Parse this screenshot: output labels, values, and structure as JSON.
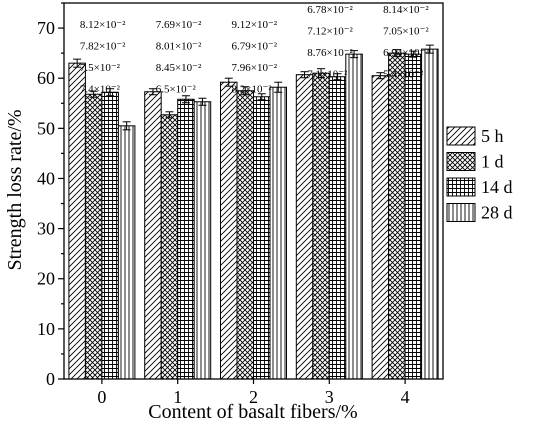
{
  "chart_data": {
    "type": "bar",
    "title": "",
    "xlabel": "Content of basalt fibers/%",
    "ylabel": "Strength loss rate/%",
    "ylim": [
      0,
      75
    ],
    "yticks": [
      0,
      10,
      20,
      30,
      40,
      50,
      60,
      70
    ],
    "categories": [
      "0",
      "1",
      "2",
      "3",
      "4"
    ],
    "legend_position": "right",
    "grid": false,
    "series": [
      {
        "name": "5 h",
        "pattern": "diagonal-hatch",
        "values": [
          63.0,
          57.3,
          59.2,
          60.7,
          60.5
        ],
        "errors": [
          0.8,
          0.6,
          0.8,
          0.6,
          0.6
        ]
      },
      {
        "name": "1 d",
        "pattern": "crosshatch-dense",
        "values": [
          56.8,
          52.7,
          57.5,
          61.0,
          65.0
        ],
        "errors": [
          0.6,
          0.6,
          0.8,
          0.9,
          0.7
        ]
      },
      {
        "name": "14 d",
        "pattern": "grid",
        "values": [
          57.2,
          55.8,
          56.3,
          60.3,
          64.8
        ],
        "errors": [
          0.7,
          0.7,
          0.6,
          0.6,
          0.6
        ]
      },
      {
        "name": "28 d",
        "pattern": "vertical-lines",
        "values": [
          50.5,
          55.3,
          58.2,
          64.8,
          65.8
        ],
        "errors": [
          0.8,
          0.7,
          1.0,
          0.7,
          0.8
        ]
      }
    ],
    "annotations": [
      [
        "8.12×10⁻²",
        "7.82×10⁻²",
        "7.5×10⁻²",
        "7.4×10⁻²"
      ],
      [
        "7.69×10⁻²",
        "8.01×10⁻²",
        "8.45×10⁻²",
        "6.5×10⁻²"
      ],
      [
        "9.12×10⁻²",
        "6.79×10⁻²",
        "7.96×10⁻²",
        "8.2×10⁻²"
      ],
      [
        "6.78×10⁻²",
        "7.12×10⁻²",
        "8.76×10⁻²",
        "7.1×10⁻²"
      ],
      [
        "8.14×10⁻²",
        "7.05×10⁻²",
        "6.94×10⁻²",
        "5.4×10⁻²"
      ]
    ]
  }
}
